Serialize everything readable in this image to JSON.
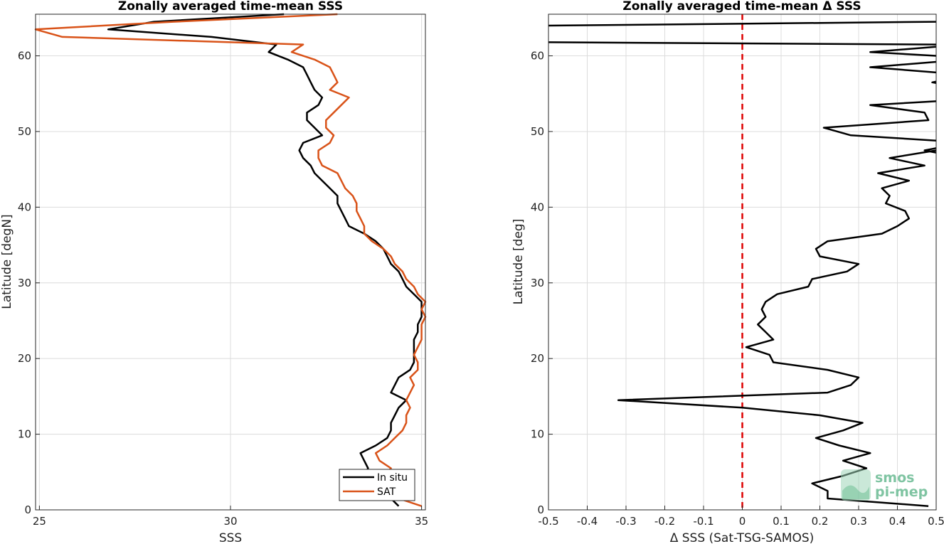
{
  "chart_data": [
    {
      "type": "line",
      "title": "Zonally averaged time-mean SSS",
      "xlabel": "SSS",
      "ylabel": "Latitude [degN]",
      "xlim": [
        24.9,
        35.1
      ],
      "ylim": [
        0,
        65.5
      ],
      "xticks": [
        25,
        30,
        35
      ],
      "yticks": [
        0,
        10,
        20,
        30,
        40,
        50,
        60
      ],
      "grid": true,
      "legend": "bottom-right",
      "series": [
        {
          "name": "In situ",
          "color": "#000000",
          "points": [
            [
              34.4,
              0.5
            ],
            [
              34.2,
              1.5
            ],
            [
              33.9,
              2.5
            ],
            [
              33.7,
              3.5
            ],
            [
              33.5,
              4.5
            ],
            [
              33.6,
              5.5
            ],
            [
              33.5,
              6.5
            ],
            [
              33.4,
              7.5
            ],
            [
              33.8,
              8.5
            ],
            [
              34.1,
              9.5
            ],
            [
              34.2,
              10.5
            ],
            [
              34.2,
              11.5
            ],
            [
              34.3,
              12.5
            ],
            [
              34.4,
              13.5
            ],
            [
              34.6,
              14.5
            ],
            [
              34.2,
              15.5
            ],
            [
              34.3,
              16.5
            ],
            [
              34.4,
              17.5
            ],
            [
              34.7,
              18.5
            ],
            [
              34.8,
              19.5
            ],
            [
              34.8,
              20.5
            ],
            [
              34.8,
              21.5
            ],
            [
              34.8,
              22.5
            ],
            [
              34.9,
              23.5
            ],
            [
              34.9,
              24.5
            ],
            [
              35.0,
              25.5
            ],
            [
              35.0,
              26.5
            ],
            [
              35.0,
              27.5
            ],
            [
              34.8,
              28.5
            ],
            [
              34.6,
              29.5
            ],
            [
              34.5,
              30.5
            ],
            [
              34.4,
              31.5
            ],
            [
              34.2,
              32.5
            ],
            [
              34.1,
              33.5
            ],
            [
              34.0,
              34.5
            ],
            [
              33.8,
              35.5
            ],
            [
              33.5,
              36.5
            ],
            [
              33.1,
              37.5
            ],
            [
              33.0,
              38.5
            ],
            [
              32.9,
              39.5
            ],
            [
              32.8,
              40.5
            ],
            [
              32.8,
              41.5
            ],
            [
              32.6,
              42.5
            ],
            [
              32.4,
              43.5
            ],
            [
              32.2,
              44.5
            ],
            [
              32.1,
              45.5
            ],
            [
              31.9,
              46.5
            ],
            [
              31.8,
              47.5
            ],
            [
              31.9,
              48.5
            ],
            [
              32.4,
              49.5
            ],
            [
              32.2,
              50.5
            ],
            [
              32.0,
              51.5
            ],
            [
              32.0,
              52.5
            ],
            [
              32.3,
              53.5
            ],
            [
              32.4,
              54.5
            ],
            [
              32.2,
              55.5
            ],
            [
              32.1,
              56.5
            ],
            [
              32.0,
              57.5
            ],
            [
              31.9,
              58.5
            ],
            [
              31.5,
              59.5
            ],
            [
              31.0,
              60.5
            ],
            [
              31.2,
              61.5
            ],
            [
              29.5,
              62.5
            ],
            [
              26.8,
              63.5
            ],
            [
              28.0,
              64.5
            ],
            [
              31.4,
              65.5
            ]
          ]
        },
        {
          "name": "SAT",
          "color": "#d95319",
          "points": [
            [
              35.0,
              0.5
            ],
            [
              34.4,
              1.5
            ],
            [
              34.3,
              2.5
            ],
            [
              34.2,
              3.5
            ],
            [
              34.0,
              4.5
            ],
            [
              34.2,
              5.5
            ],
            [
              33.9,
              6.5
            ],
            [
              33.8,
              7.5
            ],
            [
              34.1,
              8.5
            ],
            [
              34.3,
              9.5
            ],
            [
              34.5,
              10.5
            ],
            [
              34.6,
              11.5
            ],
            [
              34.6,
              12.5
            ],
            [
              34.7,
              13.5
            ],
            [
              34.6,
              14.5
            ],
            [
              34.7,
              15.5
            ],
            [
              34.8,
              16.5
            ],
            [
              34.7,
              17.5
            ],
            [
              34.9,
              18.5
            ],
            [
              34.9,
              19.5
            ],
            [
              34.8,
              20.5
            ],
            [
              34.9,
              21.5
            ],
            [
              35.0,
              22.5
            ],
            [
              35.0,
              23.5
            ],
            [
              35.0,
              24.5
            ],
            [
              35.1,
              25.5
            ],
            [
              35.0,
              26.5
            ],
            [
              35.1,
              27.5
            ],
            [
              34.9,
              28.5
            ],
            [
              34.8,
              29.5
            ],
            [
              34.6,
              30.5
            ],
            [
              34.5,
              31.5
            ],
            [
              34.3,
              32.5
            ],
            [
              34.2,
              33.5
            ],
            [
              34.0,
              34.5
            ],
            [
              33.7,
              35.5
            ],
            [
              33.5,
              36.5
            ],
            [
              33.5,
              37.5
            ],
            [
              33.4,
              38.5
            ],
            [
              33.3,
              39.5
            ],
            [
              33.3,
              40.5
            ],
            [
              33.2,
              41.5
            ],
            [
              33.0,
              42.5
            ],
            [
              32.9,
              43.5
            ],
            [
              32.8,
              44.5
            ],
            [
              32.4,
              45.5
            ],
            [
              32.3,
              46.5
            ],
            [
              32.3,
              47.5
            ],
            [
              32.6,
              48.5
            ],
            [
              32.7,
              49.5
            ],
            [
              32.5,
              50.5
            ],
            [
              32.5,
              51.5
            ],
            [
              32.7,
              52.5
            ],
            [
              32.9,
              53.5
            ],
            [
              33.1,
              54.5
            ],
            [
              32.6,
              55.5
            ],
            [
              32.8,
              56.5
            ],
            [
              32.7,
              57.5
            ],
            [
              32.6,
              58.5
            ],
            [
              32.2,
              59.5
            ],
            [
              31.6,
              60.5
            ],
            [
              31.9,
              61.5
            ],
            [
              25.6,
              62.5
            ],
            [
              24.9,
              63.5
            ],
            [
              28.5,
              64.5
            ],
            [
              32.8,
              65.5
            ]
          ]
        }
      ]
    },
    {
      "type": "line",
      "title": "Zonally averaged time-mean Δ SSS",
      "xlabel": "Δ SSS (Sat-TSG-SAMOS)",
      "ylabel": "Latitude [deg]",
      "xlim": [
        -0.5,
        0.5
      ],
      "ylim": [
        0,
        65.5
      ],
      "xticks": [
        -0.5,
        -0.4,
        -0.3,
        -0.2,
        -0.1,
        0,
        0.1,
        0.2,
        0.3,
        0.4,
        0.5
      ],
      "yticks": [
        0,
        10,
        20,
        30,
        40,
        50,
        60
      ],
      "grid": true,
      "reference_line": {
        "x": 0,
        "color": "#dd0000",
        "style": "dashed"
      },
      "series": [
        {
          "color": "#000000",
          "segments": [
            [
              [
                0.48,
                0.5
              ],
              [
                0.22,
                1.5
              ],
              [
                0.22,
                2.5
              ],
              [
                0.18,
                3.5
              ],
              [
                0.26,
                4.5
              ],
              [
                0.32,
                5.5
              ],
              [
                0.26,
                6.5
              ],
              [
                0.33,
                7.5
              ],
              [
                0.25,
                8.5
              ],
              [
                0.19,
                9.5
              ],
              [
                0.26,
                10.5
              ],
              [
                0.31,
                11.5
              ],
              [
                0.2,
                12.5
              ],
              [
                0.0,
                13.5
              ],
              [
                -0.32,
                14.5
              ],
              [
                0.22,
                15.5
              ],
              [
                0.28,
                16.5
              ],
              [
                0.3,
                17.5
              ],
              [
                0.22,
                18.5
              ],
              [
                0.08,
                19.5
              ],
              [
                0.07,
                20.5
              ],
              [
                0.01,
                21.5
              ],
              [
                0.08,
                22.5
              ],
              [
                0.06,
                23.5
              ],
              [
                0.04,
                24.5
              ],
              [
                0.06,
                25.5
              ],
              [
                0.05,
                26.5
              ],
              [
                0.06,
                27.5
              ],
              [
                0.09,
                28.5
              ],
              [
                0.17,
                29.5
              ],
              [
                0.18,
                30.5
              ],
              [
                0.27,
                31.5
              ],
              [
                0.3,
                32.5
              ],
              [
                0.2,
                33.5
              ],
              [
                0.19,
                34.5
              ],
              [
                0.22,
                35.5
              ],
              [
                0.36,
                36.5
              ],
              [
                0.4,
                37.5
              ],
              [
                0.43,
                38.5
              ],
              [
                0.42,
                39.5
              ],
              [
                0.37,
                40.5
              ],
              [
                0.38,
                41.5
              ],
              [
                0.36,
                42.5
              ],
              [
                0.43,
                43.5
              ],
              [
                0.35,
                44.5
              ],
              [
                0.47,
                45.5
              ],
              [
                0.38,
                46.5
              ],
              [
                0.5,
                47.5
              ]
            ],
            [
              [
                0.5,
                47.2
              ],
              [
                0.47,
                47.5
              ],
              [
                0.5,
                47.8
              ]
            ],
            [
              [
                0.5,
                48.8
              ],
              [
                0.28,
                49.5
              ],
              [
                0.21,
                50.5
              ],
              [
                0.48,
                51.5
              ],
              [
                0.47,
                52.5
              ],
              [
                0.33,
                53.5
              ],
              [
                0.5,
                54.0
              ]
            ],
            [
              [
                0.5,
                56.4
              ],
              [
                0.49,
                56.5
              ],
              [
                0.5,
                56.6
              ]
            ],
            [
              [
                0.5,
                57.8
              ],
              [
                0.33,
                58.5
              ],
              [
                0.5,
                59.2
              ]
            ],
            [
              [
                0.5,
                60.0
              ],
              [
                0.33,
                60.5
              ],
              [
                0.5,
                61.2
              ]
            ],
            [
              [
                0.5,
                61.5
              ],
              [
                -0.5,
                61.8
              ]
            ],
            [
              [
                -0.5,
                64.0
              ],
              [
                0.5,
                64.5
              ]
            ]
          ]
        }
      ]
    }
  ],
  "watermark": {
    "line1": "smos",
    "line2": "pi-mep"
  }
}
